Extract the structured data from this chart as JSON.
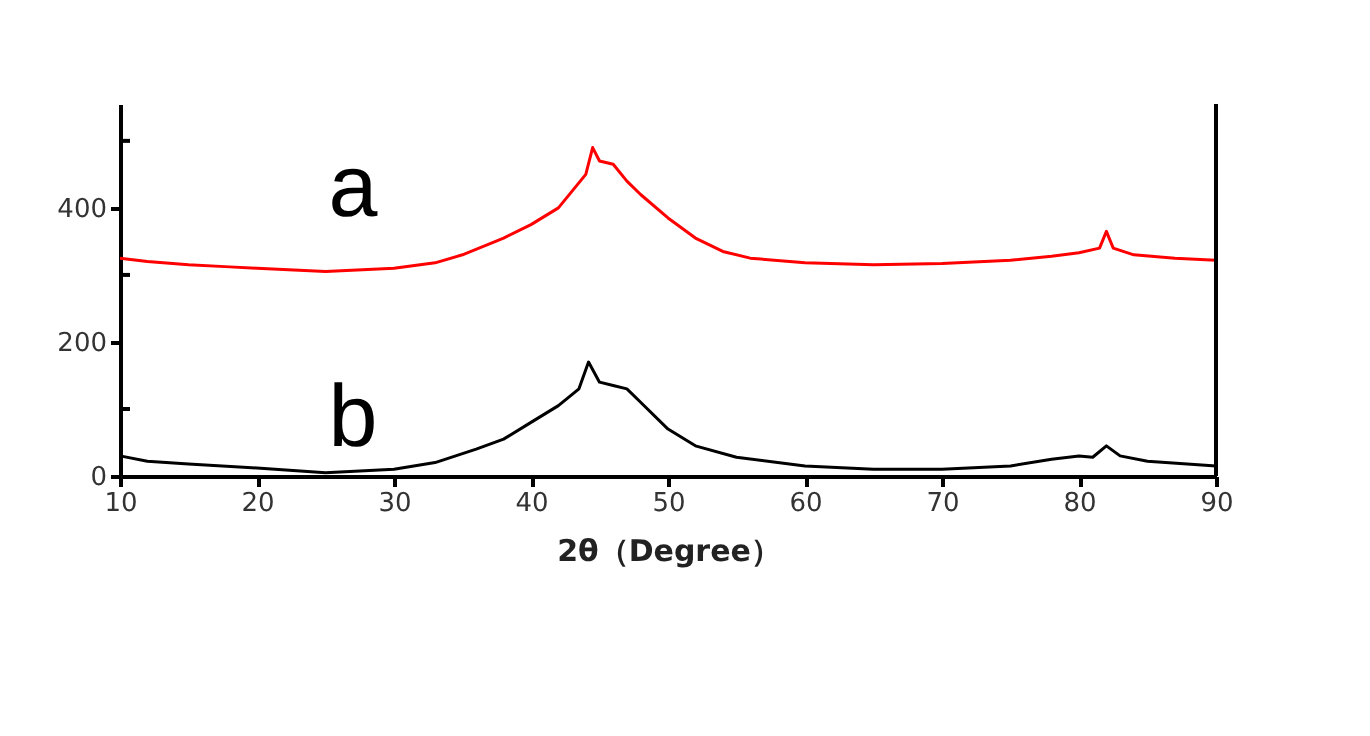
{
  "chart_data": {
    "type": "line",
    "xlabel": "2θ（Degree）",
    "xlim": [
      10,
      90
    ],
    "xticks": [
      10,
      20,
      30,
      40,
      50,
      60,
      70,
      80,
      90
    ],
    "ylim": [
      0,
      555
    ],
    "yticks": [
      0,
      {
        "value": 100,
        "label": null
      },
      200,
      {
        "value": 300,
        "label": null
      },
      400,
      {
        "value": 500,
        "label": null
      }
    ],
    "grid": false,
    "marker": "none",
    "line_style": "solid",
    "series": [
      {
        "name": "a",
        "color": "#ff0000",
        "x": [
          10,
          12,
          15,
          18,
          20,
          25,
          30,
          33,
          35,
          38,
          40,
          42,
          43,
          44,
          44.5,
          45,
          46,
          47,
          48,
          50,
          52,
          54,
          56,
          60,
          65,
          70,
          75,
          78,
          80,
          81.5,
          82,
          82.5,
          84,
          87,
          90
        ],
        "values": [
          325,
          320,
          315,
          312,
          310,
          305,
          310,
          318,
          330,
          355,
          375,
          400,
          425,
          450,
          490,
          470,
          465,
          440,
          420,
          385,
          355,
          335,
          325,
          318,
          315,
          317,
          322,
          328,
          333,
          340,
          365,
          340,
          330,
          325,
          322
        ]
      },
      {
        "name": "b",
        "color": "#000000",
        "x": [
          10,
          12,
          15,
          20,
          25,
          30,
          33,
          36,
          38,
          40,
          42,
          43.5,
          44.2,
          45,
          46,
          47,
          48,
          50,
          52,
          55,
          60,
          65,
          70,
          75,
          78,
          80,
          81,
          82,
          83,
          85,
          90
        ],
        "values": [
          30,
          22,
          18,
          12,
          5,
          10,
          20,
          40,
          55,
          80,
          105,
          130,
          170,
          140,
          135,
          130,
          110,
          70,
          45,
          28,
          15,
          10,
          10,
          15,
          25,
          30,
          28,
          45,
          30,
          22,
          15
        ]
      }
    ]
  }
}
